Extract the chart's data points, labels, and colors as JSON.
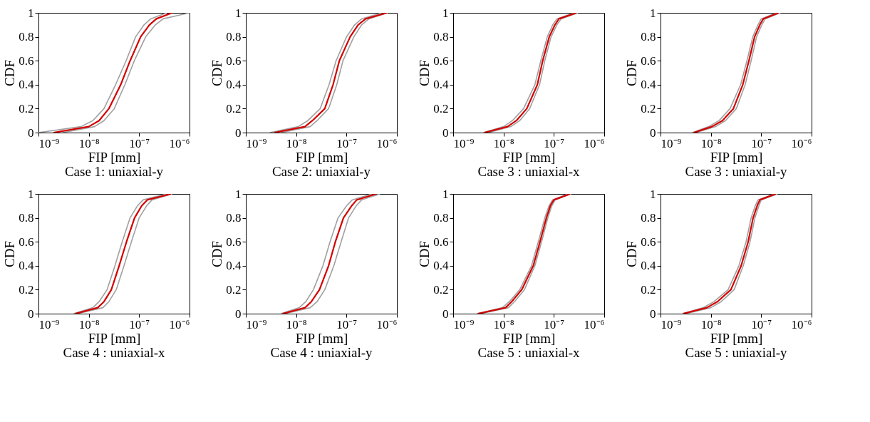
{
  "chart_data": [
    {
      "type": "line",
      "title": "Case 1: uniaxial-y",
      "xlabel": "FIP [mm]",
      "ylabel": "CDF",
      "log": "x",
      "grid": false,
      "xlim": [
        1e-09,
        1e-06
      ],
      "ylim": [
        0,
        1
      ],
      "xticks": [
        {
          "value": 1e-09,
          "label": "10⁻⁹"
        },
        {
          "value": 1e-08,
          "label": "10⁻⁸"
        },
        {
          "value": 1e-07,
          "label": "10⁻⁷"
        },
        {
          "value": 1e-06,
          "label": "10⁻⁶"
        }
      ],
      "yticks": [
        0,
        0.2,
        0.4,
        0.6,
        0.8,
        1
      ],
      "series": [
        {
          "color": "#a0a0a0",
          "x": [
            1e-09,
            7e-09,
            1.2e-08,
            2e-08,
            3.4e-08,
            5.5e-08,
            8.5e-08,
            1.25e-07,
            1.7e-07,
            3.5e-07
          ],
          "values": [
            0,
            0.05,
            0.1,
            0.2,
            0.4,
            0.6,
            0.8,
            0.9,
            0.95,
            1
          ]
        },
        {
          "color": "#a0a0a0",
          "x": [
            3e-09,
            1.3e-08,
            2e-08,
            3.2e-08,
            5.2e-08,
            8e-08,
            1.35e-07,
            2.1e-07,
            3e-07,
            1e-06
          ],
          "values": [
            0,
            0.05,
            0.1,
            0.2,
            0.4,
            0.6,
            0.8,
            0.9,
            0.95,
            1
          ]
        },
        {
          "color": "#d40000",
          "x": [
            2e-09,
            1e-08,
            1.6e-08,
            2.5e-08,
            4.3e-08,
            6.6e-08,
            1.07e-07,
            1.6e-07,
            2.2e-07,
            4.5e-07
          ],
          "values": [
            0,
            0.05,
            0.1,
            0.2,
            0.4,
            0.6,
            0.8,
            0.9,
            0.95,
            1
          ]
        }
      ]
    },
    {
      "type": "line",
      "title": "Case 2: uniaxial-y",
      "xlabel": "FIP [mm]",
      "ylabel": "CDF",
      "log": "x",
      "grid": false,
      "xlim": [
        1e-09,
        1e-06
      ],
      "ylim": [
        0,
        1
      ],
      "xticks": [
        {
          "value": 1e-09,
          "label": "10⁻⁹"
        },
        {
          "value": 1e-08,
          "label": "10⁻⁸"
        },
        {
          "value": 1e-07,
          "label": "10⁻⁷"
        },
        {
          "value": 1e-06,
          "label": "10⁻⁶"
        }
      ],
      "yticks": [
        0,
        0.2,
        0.4,
        0.6,
        0.8,
        1
      ],
      "series": [
        {
          "color": "#a0a0a0",
          "x": [
            3e-09,
            1.1e-08,
            1.7e-08,
            3e-08,
            4.5e-08,
            6.2e-08,
            1e-07,
            1.45e-07,
            2e-07,
            5e-07
          ],
          "values": [
            0,
            0.05,
            0.1,
            0.2,
            0.4,
            0.6,
            0.8,
            0.9,
            0.95,
            1
          ]
        },
        {
          "color": "#a0a0a0",
          "x": [
            5e-09,
            1.9e-08,
            2.6e-08,
            4.4e-08,
            6.4e-08,
            8.5e-08,
            1.4e-07,
            2e-07,
            2.8e-07,
            6.5e-07
          ],
          "values": [
            0,
            0.05,
            0.1,
            0.2,
            0.4,
            0.6,
            0.8,
            0.9,
            0.95,
            1
          ]
        },
        {
          "color": "#d40000",
          "x": [
            3.7e-09,
            1.5e-08,
            2.1e-08,
            3.7e-08,
            5.4e-08,
            7.2e-08,
            1.18e-07,
            1.7e-07,
            2.4e-07,
            6.3e-07
          ],
          "values": [
            0,
            0.05,
            0.1,
            0.2,
            0.4,
            0.6,
            0.8,
            0.9,
            0.95,
            1
          ]
        }
      ]
    },
    {
      "type": "line",
      "title": "Case 3 : uniaxial-x",
      "xlabel": "FIP [mm]",
      "ylabel": "CDF",
      "log": "x",
      "grid": false,
      "xlim": [
        1e-09,
        1e-06
      ],
      "ylim": [
        0,
        1
      ],
      "xticks": [
        {
          "value": 1e-09,
          "label": "10⁻⁹"
        },
        {
          "value": 1e-08,
          "label": "10⁻⁸"
        },
        {
          "value": 1e-07,
          "label": "10⁻⁷"
        },
        {
          "value": 1e-06,
          "label": "10⁻⁶"
        }
      ],
      "yticks": [
        0,
        0.2,
        0.4,
        0.6,
        0.8,
        1
      ],
      "series": [
        {
          "color": "#a0a0a0",
          "x": [
            4e-09,
            1e-08,
            1.5e-08,
            2.5e-08,
            4.2e-08,
            5.5e-08,
            7.4e-08,
            9.5e-08,
            1.15e-07,
            2.5e-07
          ],
          "values": [
            0,
            0.05,
            0.1,
            0.2,
            0.4,
            0.6,
            0.8,
            0.9,
            0.95,
            1
          ]
        },
        {
          "color": "#a0a0a0",
          "x": [
            5e-09,
            1.4e-08,
            2.1e-08,
            3.3e-08,
            5.2e-08,
            6.6e-08,
            8.8e-08,
            1.15e-07,
            1.4e-07,
            3e-07
          ],
          "values": [
            0,
            0.05,
            0.1,
            0.2,
            0.4,
            0.6,
            0.8,
            0.9,
            0.95,
            1
          ]
        },
        {
          "color": "#d40000",
          "x": [
            4.2e-09,
            1.2e-08,
            1.8e-08,
            2.9e-08,
            4.7e-08,
            6e-08,
            8.1e-08,
            1.05e-07,
            1.26e-07,
            2.8e-07
          ],
          "values": [
            0,
            0.05,
            0.1,
            0.2,
            0.4,
            0.6,
            0.8,
            0.9,
            0.95,
            1
          ]
        }
      ]
    },
    {
      "type": "line",
      "title": "Case 3 : uniaxial-y",
      "xlabel": "FIP [mm]",
      "ylabel": "CDF",
      "log": "x",
      "grid": false,
      "xlim": [
        1e-09,
        1e-06
      ],
      "ylim": [
        0,
        1
      ],
      "xticks": [
        {
          "value": 1e-09,
          "label": "10⁻⁹"
        },
        {
          "value": 1e-08,
          "label": "10⁻⁸"
        },
        {
          "value": 1e-07,
          "label": "10⁻⁷"
        },
        {
          "value": 1e-06,
          "label": "10⁻⁶"
        }
      ],
      "yticks": [
        0,
        0.2,
        0.4,
        0.6,
        0.8,
        1
      ],
      "series": [
        {
          "color": "#a0a0a0",
          "x": [
            4.3e-09,
            9e-09,
            1.45e-08,
            2.4e-08,
            3.9e-08,
            5.2e-08,
            6.8e-08,
            8.6e-08,
            1e-07,
            2e-07
          ],
          "values": [
            0,
            0.05,
            0.1,
            0.2,
            0.4,
            0.6,
            0.8,
            0.9,
            0.95,
            1
          ]
        },
        {
          "color": "#a0a0a0",
          "x": [
            5e-09,
            1.25e-08,
            1.95e-08,
            3.2e-08,
            4.8e-08,
            6.3e-08,
            8.1e-08,
            1.03e-07,
            1.2e-07,
            2.4e-07
          ],
          "values": [
            0,
            0.05,
            0.1,
            0.2,
            0.4,
            0.6,
            0.8,
            0.9,
            0.95,
            1
          ]
        },
        {
          "color": "#d40000",
          "x": [
            4.6e-09,
            1.05e-08,
            1.7e-08,
            2.8e-08,
            4.3e-08,
            5.7e-08,
            7.4e-08,
            9.4e-08,
            1.1e-07,
            2.2e-07
          ],
          "values": [
            0,
            0.05,
            0.1,
            0.2,
            0.4,
            0.6,
            0.8,
            0.9,
            0.95,
            1
          ]
        }
      ]
    },
    {
      "type": "line",
      "title": "Case 4 : uniaxial-x",
      "xlabel": "FIP [mm]",
      "ylabel": "CDF",
      "log": "x",
      "grid": false,
      "xlim": [
        1e-09,
        1e-06
      ],
      "ylim": [
        0,
        1
      ],
      "xticks": [
        {
          "value": 1e-09,
          "label": "10⁻⁹"
        },
        {
          "value": 1e-08,
          "label": "10⁻⁸"
        },
        {
          "value": 1e-07,
          "label": "10⁻⁷"
        },
        {
          "value": 1e-06,
          "label": "10⁻⁶"
        }
      ],
      "yticks": [
        0,
        0.2,
        0.4,
        0.6,
        0.8,
        1
      ],
      "series": [
        {
          "color": "#a0a0a0",
          "x": [
            5e-09,
            1.2e-08,
            1.6e-08,
            2.3e-08,
            3.3e-08,
            4.6e-08,
            6.6e-08,
            9.2e-08,
            1.2e-07,
            3.5e-07
          ],
          "values": [
            0,
            0.05,
            0.1,
            0.2,
            0.4,
            0.6,
            0.8,
            0.9,
            0.95,
            1
          ]
        },
        {
          "color": "#a0a0a0",
          "x": [
            6e-09,
            1.9e-08,
            2.5e-08,
            3.5e-08,
            5e-08,
            7e-08,
            1e-07,
            1.4e-07,
            1.8e-07,
            4.5e-07
          ],
          "values": [
            0,
            0.05,
            0.1,
            0.2,
            0.4,
            0.6,
            0.8,
            0.9,
            0.95,
            1
          ]
        },
        {
          "color": "#d40000",
          "x": [
            5.4e-09,
            1.5e-08,
            2e-08,
            2.8e-08,
            4e-08,
            5.6e-08,
            8.1e-08,
            1.12e-07,
            1.45e-07,
            4.3e-07
          ],
          "values": [
            0,
            0.05,
            0.1,
            0.2,
            0.4,
            0.6,
            0.8,
            0.9,
            0.95,
            1
          ]
        }
      ]
    },
    {
      "type": "line",
      "title": "Case 4 : uniaxial-y",
      "xlabel": "FIP [mm]",
      "ylabel": "CDF",
      "log": "x",
      "grid": false,
      "xlim": [
        1e-09,
        1e-06
      ],
      "ylim": [
        0,
        1
      ],
      "xticks": [
        {
          "value": 1e-09,
          "label": "10⁻⁹"
        },
        {
          "value": 1e-08,
          "label": "10⁻⁸"
        },
        {
          "value": 1e-07,
          "label": "10⁻⁷"
        },
        {
          "value": 1e-06,
          "label": "10⁻⁶"
        }
      ],
      "yticks": [
        0,
        0.2,
        0.4,
        0.6,
        0.8,
        1
      ],
      "series": [
        {
          "color": "#a0a0a0",
          "x": [
            5e-09,
            1.15e-08,
            1.55e-08,
            2.2e-08,
            3.4e-08,
            4.7e-08,
            6.8e-08,
            1e-07,
            1.3e-07,
            3.2e-07
          ],
          "values": [
            0,
            0.05,
            0.1,
            0.2,
            0.4,
            0.6,
            0.8,
            0.9,
            0.95,
            1
          ]
        },
        {
          "color": "#a0a0a0",
          "x": [
            6e-09,
            1.9e-08,
            2.6e-08,
            3.7e-08,
            5.6e-08,
            7.8e-08,
            1.1e-07,
            1.55e-07,
            2e-07,
            4.6e-07
          ],
          "values": [
            0,
            0.05,
            0.1,
            0.2,
            0.4,
            0.6,
            0.8,
            0.9,
            0.95,
            1
          ]
        },
        {
          "color": "#d40000",
          "x": [
            5.4e-09,
            1.5e-08,
            2e-08,
            2.9e-08,
            4.4e-08,
            6e-08,
            8.7e-08,
            1.26e-07,
            1.6e-07,
            3.9e-07
          ],
          "values": [
            0,
            0.05,
            0.1,
            0.2,
            0.4,
            0.6,
            0.8,
            0.9,
            0.95,
            1
          ]
        }
      ]
    },
    {
      "type": "line",
      "title": "Case 5 : uniaxial-x",
      "xlabel": "FIP [mm]",
      "ylabel": "CDF",
      "log": "x",
      "grid": false,
      "xlim": [
        1e-09,
        1e-06
      ],
      "ylim": [
        0,
        1
      ],
      "xticks": [
        {
          "value": 1e-09,
          "label": "10⁻⁹"
        },
        {
          "value": 1e-08,
          "label": "10⁻⁸"
        },
        {
          "value": 1e-07,
          "label": "10⁻⁷"
        },
        {
          "value": 1e-06,
          "label": "10⁻⁶"
        }
      ],
      "yticks": [
        0,
        0.2,
        0.4,
        0.6,
        0.8,
        1
      ],
      "series": [
        {
          "color": "#a0a0a0",
          "x": [
            3e-09,
            9.5e-09,
            1.3e-08,
            2.1e-08,
            3.6e-08,
            4.9e-08,
            6.6e-08,
            8e-08,
            9.4e-08,
            1.9e-07
          ],
          "values": [
            0,
            0.05,
            0.1,
            0.2,
            0.4,
            0.6,
            0.8,
            0.9,
            0.95,
            1
          ]
        },
        {
          "color": "#a0a0a0",
          "x": [
            3.5e-09,
            1.25e-08,
            1.65e-08,
            2.6e-08,
            4.2e-08,
            5.7e-08,
            7.6e-08,
            9.1e-08,
            1.06e-07,
            2.2e-07
          ],
          "values": [
            0,
            0.05,
            0.1,
            0.2,
            0.4,
            0.6,
            0.8,
            0.9,
            0.95,
            1
          ]
        },
        {
          "color": "#d40000",
          "x": [
            3.1e-09,
            1.1e-08,
            1.45e-08,
            2.3e-08,
            3.9e-08,
            5.3e-08,
            7.1e-08,
            8.5e-08,
            1e-07,
            2.1e-07
          ],
          "values": [
            0,
            0.05,
            0.1,
            0.2,
            0.4,
            0.6,
            0.8,
            0.9,
            0.95,
            1
          ]
        }
      ]
    },
    {
      "type": "line",
      "title": "Case 5 : uniaxial-y",
      "xlabel": "FIP [mm]",
      "ylabel": "CDF",
      "log": "x",
      "grid": false,
      "xlim": [
        1e-09,
        1e-06
      ],
      "ylim": [
        0,
        1
      ],
      "xticks": [
        {
          "value": 1e-09,
          "label": "10⁻⁹"
        },
        {
          "value": 1e-08,
          "label": "10⁻⁸"
        },
        {
          "value": 1e-07,
          "label": "10⁻⁷"
        },
        {
          "value": 1e-06,
          "label": "10⁻⁶"
        }
      ],
      "yticks": [
        0,
        0.2,
        0.4,
        0.6,
        0.8,
        1
      ],
      "series": [
        {
          "color": "#a0a0a0",
          "x": [
            2.8e-09,
            7e-09,
            1.15e-08,
            2.2e-08,
            3.6e-08,
            5e-08,
            6.3e-08,
            7.6e-08,
            8.6e-08,
            1.8e-07
          ],
          "values": [
            0,
            0.05,
            0.1,
            0.2,
            0.4,
            0.6,
            0.8,
            0.9,
            0.95,
            1
          ]
        },
        {
          "color": "#a0a0a0",
          "x": [
            3.2e-09,
            1e-08,
            1.6e-08,
            2.9e-08,
            4.4e-08,
            6e-08,
            7.5e-08,
            9e-08,
            1e-07,
            2.1e-07
          ],
          "values": [
            0,
            0.05,
            0.1,
            0.2,
            0.4,
            0.6,
            0.8,
            0.9,
            0.95,
            1
          ]
        },
        {
          "color": "#d40000",
          "x": [
            2.8e-09,
            8.3e-09,
            1.35e-08,
            2.5e-08,
            4e-08,
            5.5e-08,
            6.9e-08,
            8.3e-08,
            9.4e-08,
            1.95e-07
          ],
          "values": [
            0,
            0.05,
            0.1,
            0.2,
            0.4,
            0.6,
            0.8,
            0.9,
            0.95,
            1
          ]
        }
      ]
    }
  ]
}
